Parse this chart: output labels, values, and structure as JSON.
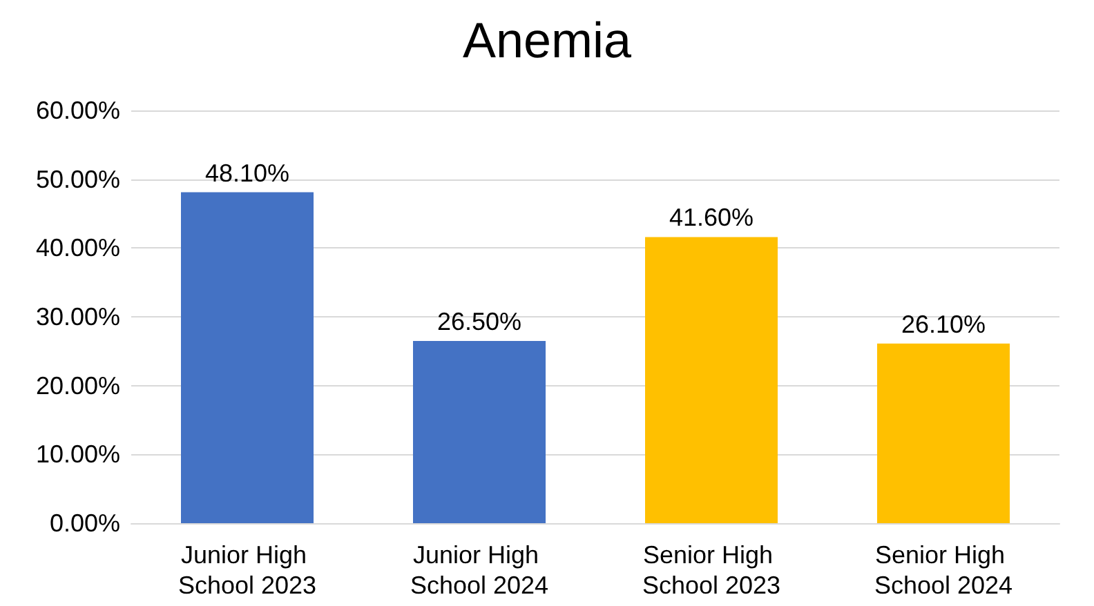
{
  "chart_data": {
    "type": "bar",
    "title": "Anemia",
    "categories": [
      "Junior High School 2023",
      "Junior High School 2024",
      "Senior High School 2023",
      "Senior High School 2024"
    ],
    "values": [
      48.1,
      26.5,
      41.6,
      26.1
    ],
    "colors": [
      "#4472c4",
      "#4472c4",
      "#ffc000",
      "#ffc000"
    ],
    "value_labels": [
      "48.10%",
      "26.50%",
      "41.60%",
      "26.10%"
    ],
    "ylim": [
      0,
      60
    ],
    "yticks": [
      {
        "value": 0,
        "label": "0.00%"
      },
      {
        "value": 10,
        "label": "10.00%"
      },
      {
        "value": 20,
        "label": "20.00%"
      },
      {
        "value": 30,
        "label": "30.00%"
      },
      {
        "value": 40,
        "label": "40.00%"
      },
      {
        "value": 50,
        "label": "50.00%"
      },
      {
        "value": 60,
        "label": "60.00%"
      }
    ],
    "grid": "y"
  }
}
